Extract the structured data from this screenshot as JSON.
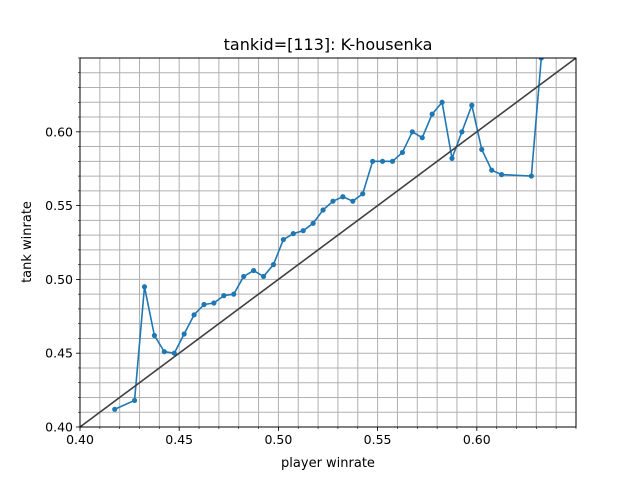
{
  "chart_data": {
    "type": "line",
    "title": "tankid=[113]: K-housenka",
    "xlabel": "player winrate",
    "ylabel": "tank winrate",
    "xlim": [
      0.4,
      0.65
    ],
    "ylim": [
      0.4,
      0.65
    ],
    "xticks": [
      {
        "value": 0.4,
        "label": "0.40"
      },
      {
        "value": 0.45,
        "label": "0.45"
      },
      {
        "value": 0.5,
        "label": "0.50"
      },
      {
        "value": 0.55,
        "label": "0.55"
      },
      {
        "value": 0.6,
        "label": "0.60"
      }
    ],
    "yticks": [
      {
        "value": 0.4,
        "label": "0.40"
      },
      {
        "value": 0.45,
        "label": "0.45"
      },
      {
        "value": 0.5,
        "label": "0.50"
      },
      {
        "value": 0.55,
        "label": "0.55"
      },
      {
        "value": 0.6,
        "label": "0.60"
      }
    ],
    "minor_step": 0.01,
    "grid": true,
    "series": [
      {
        "color": "#1f77b4",
        "marker": "circle",
        "points": [
          [
            0.4175,
            0.412
          ],
          [
            0.4275,
            0.418
          ],
          [
            0.4325,
            0.495
          ],
          [
            0.4375,
            0.462
          ],
          [
            0.4425,
            0.451
          ],
          [
            0.4475,
            0.45
          ],
          [
            0.4525,
            0.463
          ],
          [
            0.4575,
            0.476
          ],
          [
            0.4625,
            0.483
          ],
          [
            0.4675,
            0.484
          ],
          [
            0.4725,
            0.489
          ],
          [
            0.4775,
            0.49
          ],
          [
            0.4825,
            0.502
          ],
          [
            0.4875,
            0.506
          ],
          [
            0.4925,
            0.502
          ],
          [
            0.4975,
            0.51
          ],
          [
            0.5025,
            0.527
          ],
          [
            0.5075,
            0.531
          ],
          [
            0.5125,
            0.533
          ],
          [
            0.5175,
            0.538
          ],
          [
            0.5225,
            0.547
          ],
          [
            0.5275,
            0.553
          ],
          [
            0.5325,
            0.556
          ],
          [
            0.5375,
            0.553
          ],
          [
            0.5425,
            0.558
          ],
          [
            0.5475,
            0.58
          ],
          [
            0.5525,
            0.58
          ],
          [
            0.5575,
            0.58
          ],
          [
            0.5625,
            0.586
          ],
          [
            0.5675,
            0.6
          ],
          [
            0.5725,
            0.596
          ],
          [
            0.5775,
            0.612
          ],
          [
            0.5825,
            0.62
          ],
          [
            0.5875,
            0.582
          ],
          [
            0.5925,
            0.6
          ],
          [
            0.5975,
            0.618
          ],
          [
            0.6025,
            0.588
          ],
          [
            0.6075,
            0.574
          ],
          [
            0.6125,
            0.571
          ],
          [
            0.6275,
            0.57
          ],
          [
            0.6325,
            0.65
          ]
        ]
      }
    ],
    "reference_line": {
      "from": [
        0.4,
        0.4
      ],
      "to": [
        0.65,
        0.65
      ],
      "color": "#404040"
    }
  }
}
